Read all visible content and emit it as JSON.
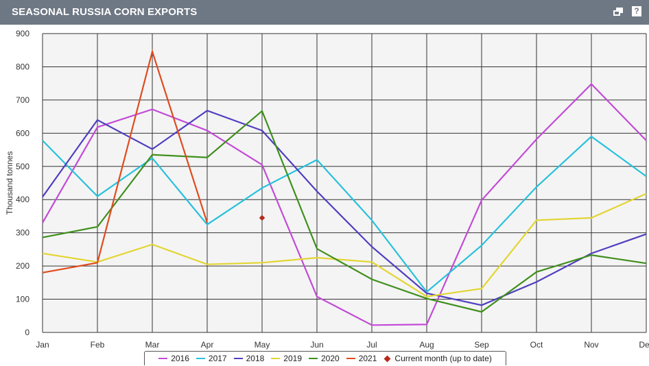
{
  "header": {
    "title": "SEASONAL RUSSIA CORN EXPORTS",
    "help_label": "?"
  },
  "colors": {
    "header_bg": "#6e7784",
    "plot_bg": "#f4f4f4",
    "grid": "#333333"
  },
  "chart_data": {
    "type": "line",
    "title": "SEASONAL RUSSIA CORN EXPORTS",
    "ylabel": "Thousand tonnes",
    "xlabel": "",
    "ylim": [
      0,
      900
    ],
    "yticks": [
      0,
      100,
      200,
      300,
      400,
      500,
      600,
      700,
      800,
      900
    ],
    "grid": true,
    "legend_position": "bottom",
    "categories": [
      "Jan",
      "Feb",
      "Mar",
      "Apr",
      "May",
      "Jun",
      "Jul",
      "Aug",
      "Sep",
      "Oct",
      "Nov",
      "Dec"
    ],
    "series": [
      {
        "name": "2016",
        "color": "#c24ad6",
        "values": [
          330,
          618,
          672,
          608,
          505,
          108,
          22,
          24,
          398,
          582,
          748,
          578
        ]
      },
      {
        "name": "2017",
        "color": "#27c1dc",
        "values": [
          578,
          410,
          525,
          325,
          435,
          520,
          338,
          122,
          262,
          438,
          590,
          470
        ]
      },
      {
        "name": "2018",
        "color": "#4f3fc0",
        "values": [
          408,
          640,
          552,
          668,
          608,
          425,
          258,
          118,
          82,
          152,
          238,
          296
        ]
      },
      {
        "name": "2019",
        "color": "#e3d531",
        "values": [
          238,
          212,
          265,
          205,
          210,
          225,
          212,
          108,
          132,
          338,
          345,
          418
        ]
      },
      {
        "name": "2020",
        "color": "#3f8f1c",
        "values": [
          286,
          318,
          535,
          527,
          667,
          252,
          160,
          102,
          62,
          182,
          233,
          208
        ]
      },
      {
        "name": "2021",
        "color": "#e04b1e",
        "values": [
          180,
          210,
          846,
          330,
          null,
          null,
          null,
          null,
          null,
          null,
          null,
          null
        ]
      }
    ],
    "current_month": {
      "name": "Current month (up to date)",
      "color": "#b52a1c",
      "x": "May",
      "y": 345
    }
  }
}
